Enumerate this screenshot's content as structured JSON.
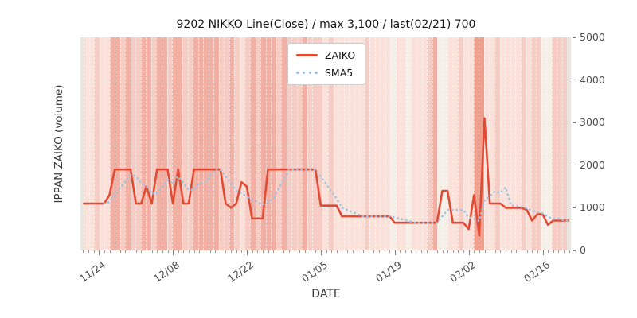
{
  "title": "9202 NIKKO Line(Close) / max 3,100 / last(02/21) 700",
  "x_axis": {
    "label": "DATE"
  },
  "y_axis": {
    "label": "IPPAN ZAIKO (volume)"
  },
  "legend": [
    {
      "label": "ZAIKO",
      "color": "#e24a33",
      "style": "solid"
    },
    {
      "label": "SMA5",
      "color": "#9ec4e4",
      "style": "dotted"
    }
  ],
  "colors": {
    "zaiko_line": "#e24a33",
    "sma5_line": "#9ec4e4",
    "tick_label": "#4d4d4d",
    "edge_band": "#e9e5e1"
  },
  "chart_data": {
    "type": "line",
    "title": "9202 NIKKO Line(Close) / max 3,100 / last(02/21) 700",
    "xlabel": "DATE",
    "ylabel": "IPPAN ZAIKO (volume)",
    "ylim": [
      0,
      5000
    ],
    "yticks": [
      0,
      1000,
      2000,
      3000,
      4000,
      5000
    ],
    "xticks_major": [
      "11/24",
      "12/08",
      "12/22",
      "01/05",
      "01/19",
      "02/02",
      "02/16"
    ],
    "legend_position": "upper center-left",
    "grid": "white dashed vertical day separators over per-day heat bands",
    "x": [
      "11/21",
      "11/22",
      "11/23",
      "11/24",
      "11/25",
      "11/26",
      "11/27",
      "11/28",
      "11/29",
      "11/30",
      "12/01",
      "12/02",
      "12/03",
      "12/04",
      "12/05",
      "12/06",
      "12/07",
      "12/08",
      "12/09",
      "12/10",
      "12/11",
      "12/12",
      "12/13",
      "12/14",
      "12/15",
      "12/16",
      "12/17",
      "12/18",
      "12/19",
      "12/20",
      "12/21",
      "12/22",
      "12/23",
      "12/24",
      "12/25",
      "12/26",
      "12/27",
      "12/28",
      "12/29",
      "12/30",
      "12/31",
      "01/01",
      "01/02",
      "01/03",
      "01/04",
      "01/05",
      "01/06",
      "01/07",
      "01/08",
      "01/09",
      "01/10",
      "01/11",
      "01/12",
      "01/13",
      "01/14",
      "01/15",
      "01/16",
      "01/17",
      "01/18",
      "01/19",
      "01/20",
      "01/21",
      "01/22",
      "01/23",
      "01/24",
      "01/25",
      "01/26",
      "01/27",
      "01/28",
      "01/29",
      "01/30",
      "01/31",
      "02/01",
      "02/02",
      "02/03",
      "02/04",
      "02/05",
      "02/06",
      "02/07",
      "02/08",
      "02/09",
      "02/10",
      "02/11",
      "02/12",
      "02/13",
      "02/14",
      "02/15",
      "02/16",
      "02/17",
      "02/18",
      "02/19",
      "02/20",
      "02/21"
    ],
    "series": [
      {
        "name": "ZAIKO",
        "color": "#e24a33",
        "style": "solid",
        "values": [
          1100,
          1100,
          1100,
          1100,
          1100,
          1300,
          1900,
          1900,
          1900,
          1900,
          1100,
          1100,
          1500,
          1100,
          1900,
          1900,
          1900,
          1100,
          1900,
          1100,
          1100,
          1900,
          1900,
          1900,
          1900,
          1900,
          1900,
          1100,
          1000,
          1100,
          1600,
          1500,
          750,
          750,
          750,
          1900,
          1900,
          1900,
          1900,
          1900,
          1900,
          1900,
          1900,
          1900,
          1900,
          1050,
          1050,
          1050,
          1050,
          800,
          800,
          800,
          800,
          800,
          800,
          800,
          800,
          800,
          800,
          650,
          650,
          650,
          650,
          650,
          650,
          650,
          650,
          650,
          1400,
          1400,
          650,
          650,
          650,
          500,
          1300,
          350,
          3100,
          1100,
          1100,
          1100,
          1000,
          1000,
          1000,
          1000,
          950,
          700,
          850,
          850,
          600,
          700,
          700,
          700,
          700
        ]
      },
      {
        "name": "SMA5",
        "color": "#9ec4e4",
        "style": "dotted",
        "derived_from": "ZAIKO",
        "window": 5
      }
    ],
    "background": {
      "palette": [
        "#f6efe7",
        "#fae2db",
        "#f6cdc4",
        "#f2afa3",
        "#efa08f"
      ],
      "heat": [
        1,
        1,
        2,
        1,
        1,
        3,
        3,
        2,
        3,
        2,
        2,
        3,
        3,
        2,
        3,
        3,
        2,
        3,
        3,
        2,
        2,
        3,
        3,
        3,
        3,
        3,
        2,
        2,
        3,
        2,
        1,
        2,
        3,
        2,
        3,
        3,
        3,
        2,
        3,
        2,
        2,
        2,
        3,
        2,
        2,
        2,
        1,
        2,
        1,
        1,
        1,
        1,
        1,
        1,
        2,
        1,
        1,
        1,
        1,
        0,
        1,
        1,
        0,
        1,
        1,
        1,
        2,
        3,
        0,
        0,
        1,
        1,
        2,
        1,
        1,
        4,
        4,
        1,
        1,
        2,
        1,
        1,
        1,
        1,
        2,
        1,
        2,
        2,
        0,
        0,
        2,
        2,
        2
      ],
      "edge_color": "#e9e5e1"
    }
  }
}
